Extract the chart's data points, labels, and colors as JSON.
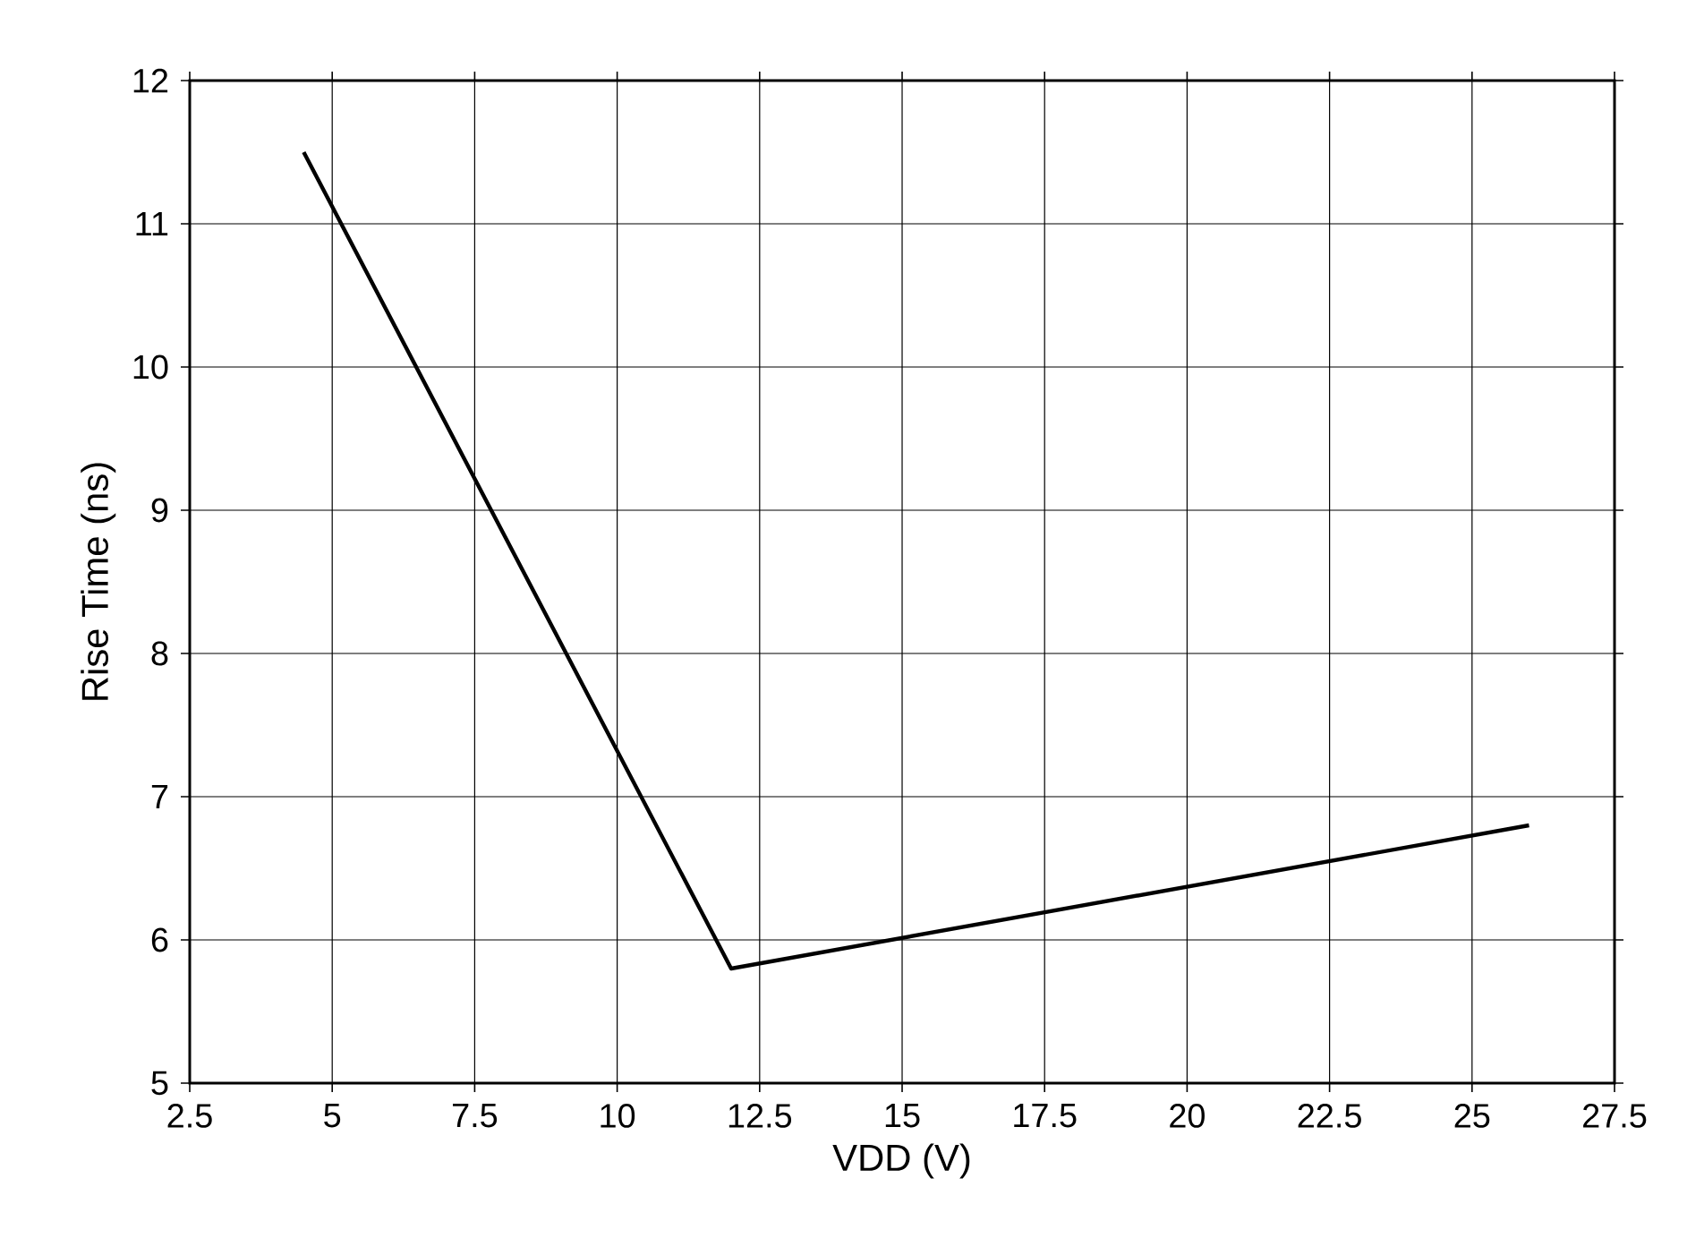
{
  "chart_data": {
    "type": "line",
    "xlabel": "VDD (V)",
    "ylabel": "Rise Time (ns)",
    "x": [
      4.5,
      12,
      26
    ],
    "series": [
      {
        "color": "#000000",
        "values": [
          11.5,
          5.8,
          6.8
        ]
      }
    ],
    "xlim": [
      2.5,
      27.5
    ],
    "ylim": [
      5,
      12
    ],
    "xticks": [
      2.5,
      5,
      7.5,
      10,
      12.5,
      15,
      17.5,
      20,
      22.5,
      25,
      27.5
    ],
    "yticks": [
      5,
      6,
      7,
      8,
      9,
      10,
      11,
      12
    ],
    "grid": true
  }
}
